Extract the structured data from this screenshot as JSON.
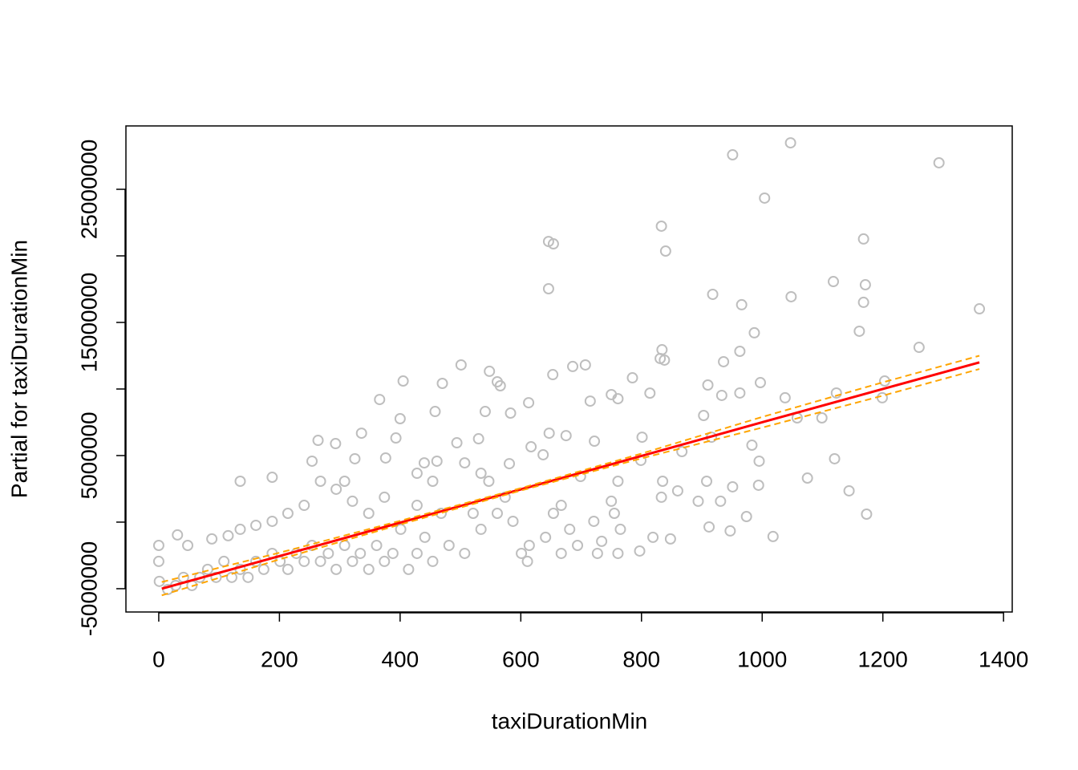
{
  "chart_data": {
    "type": "scatter",
    "xlabel": "taxiDurationMin",
    "ylabel": "Partial for taxiDurationMin",
    "xlim": [
      -54.4,
      1414.4
    ],
    "ylim": [
      -6750000,
      29760000
    ],
    "xticks": [
      0,
      200,
      400,
      600,
      800,
      1000,
      1200,
      1400
    ],
    "yticks": [
      -5000000,
      0,
      5000000,
      10000000,
      15000000,
      20000000,
      25000000
    ],
    "point_color": "#bebebe",
    "x": [
      951,
      1047,
      1293,
      1004,
      833,
      840,
      646,
      654,
      646,
      1168,
      1118,
      1171,
      918,
      966,
      1048,
      1360,
      1168,
      1161,
      987,
      963,
      936,
      1260,
      834,
      831,
      838,
      501,
      548,
      653,
      686,
      707,
      405,
      470,
      561,
      566,
      785,
      997,
      910,
      1203,
      1123,
      963,
      933,
      1038,
      1199,
      750,
      336,
      393,
      264,
      293,
      494,
      530,
      617,
      647,
      675,
      722,
      801,
      867,
      983,
      916,
      325,
      376,
      440,
      507,
      581,
      637,
      699,
      799,
      1075,
      1120,
      1144,
      1173,
      1018,
      947,
      974,
      908,
      931,
      894,
      951,
      994,
      995,
      912,
      835,
      833,
      860,
      848,
      819,
      366,
      400,
      458,
      541,
      583,
      613,
      715,
      761,
      814,
      903,
      1058,
      1099,
      761,
      750,
      755,
      765,
      761,
      797,
      727,
      721,
      734,
      667,
      654,
      681,
      694,
      667,
      641,
      614,
      611,
      601,
      587,
      574,
      561,
      547,
      534,
      521,
      507,
      481,
      468,
      454,
      441,
      428,
      414,
      401,
      388,
      374,
      361,
      348,
      334,
      321,
      308,
      294,
      281,
      268,
      254,
      241,
      228,
      214,
      201,
      188,
      174,
      161,
      148,
      135,
      121,
      108,
      95,
      81,
      68,
      55,
      41,
      28,
      15,
      1,
      0,
      0,
      31,
      48,
      88,
      115,
      135,
      161,
      188,
      214,
      241,
      268,
      294,
      321,
      348,
      374,
      428,
      454,
      188,
      135,
      254,
      308,
      428,
      461,
      534
    ],
    "values": [
      27590000,
      28490000,
      26990000,
      24340000,
      22230000,
      20360000,
      21080000,
      20900000,
      17530000,
      21270000,
      18070000,
      17830000,
      17110000,
      16330000,
      16930000,
      16020000,
      16510000,
      14340000,
      14220000,
      12830000,
      12050000,
      13130000,
      12950000,
      12290000,
      12170000,
      11810000,
      11330000,
      11080000,
      11690000,
      11810000,
      10600000,
      10420000,
      10540000,
      10240000,
      10840000,
      10480000,
      10300000,
      10600000,
      9700000,
      9700000,
      9520000,
      9340000,
      9340000,
      9580000,
      6680000,
      6320000,
      6140000,
      5900000,
      5960000,
      6260000,
      5660000,
      6680000,
      6500000,
      6080000,
      6380000,
      5300000,
      5780000,
      6380000,
      4760000,
      4820000,
      4450000,
      4450000,
      4390000,
      5060000,
      3430000,
      4640000,
      3310000,
      4760000,
      2350000,
      600000,
      -1080000,
      -660000,
      420000,
      3070000,
      1570000,
      1570000,
      2650000,
      2770000,
      4580000,
      -360000,
      3070000,
      1870000,
      2350000,
      -1260000,
      -1140000,
      9210000,
      7770000,
      8310000,
      8310000,
      8190000,
      8970000,
      9090000,
      9270000,
      9690000,
      8010000,
      7830000,
      7830000,
      3070000,
      1570000,
      660000,
      -540000,
      -2350000,
      -2170000,
      -2350000,
      60000,
      -1440000,
      1260000,
      660000,
      -540000,
      -1750000,
      -2350000,
      -1140000,
      -1750000,
      -2950000,
      -2350000,
      60000,
      1870000,
      660000,
      3070000,
      -540000,
      660000,
      -2350000,
      -1750000,
      660000,
      -2950000,
      -1140000,
      -2350000,
      -3550000,
      -540000,
      -2350000,
      -2950000,
      -1750000,
      -3550000,
      -2350000,
      -2950000,
      -1750000,
      -3550000,
      -2350000,
      -2950000,
      -1750000,
      -2950000,
      -2350000,
      -3550000,
      -2950000,
      -2350000,
      -3550000,
      -2950000,
      -4150000,
      -3550000,
      -4150000,
      -2950000,
      -4150000,
      -3550000,
      -4150000,
      -4760000,
      -4150000,
      -4760000,
      -5060000,
      -4450000,
      -1750000,
      -2950000,
      -960000,
      -1750000,
      -1260000,
      -1020000,
      -540000,
      -240000,
      60000,
      660000,
      1260000,
      3070000,
      2470000,
      1570000,
      660000,
      1870000,
      1260000,
      3070000,
      3370000,
      3070000,
      4580000,
      3070000,
      3670000,
      4580000,
      3670000
    ],
    "lines": [
      {
        "color": "#ff0000",
        "dash": false,
        "x": [
          5,
          200,
          400,
          600,
          800,
          1000,
          1200,
          1360
        ],
        "values": [
          -5000000,
          -2550000,
          -40000,
          2460000,
          4970000,
          7500000,
          10000000,
          12000000
        ]
      },
      {
        "color": "#ffa500",
        "dash": true,
        "x": [
          5,
          200,
          400,
          600,
          800,
          1000,
          1200,
          1360
        ],
        "values": [
          -4500000,
          -2300000,
          100000,
          2550000,
          5150000,
          7900000,
          10500000,
          12500000
        ]
      },
      {
        "color": "#ffa500",
        "dash": true,
        "x": [
          5,
          200,
          400,
          600,
          800,
          1000,
          1200,
          1360
        ],
        "values": [
          -5500000,
          -2800000,
          -180000,
          2370000,
          4790000,
          7100000,
          9500000,
          11500000
        ]
      }
    ]
  }
}
